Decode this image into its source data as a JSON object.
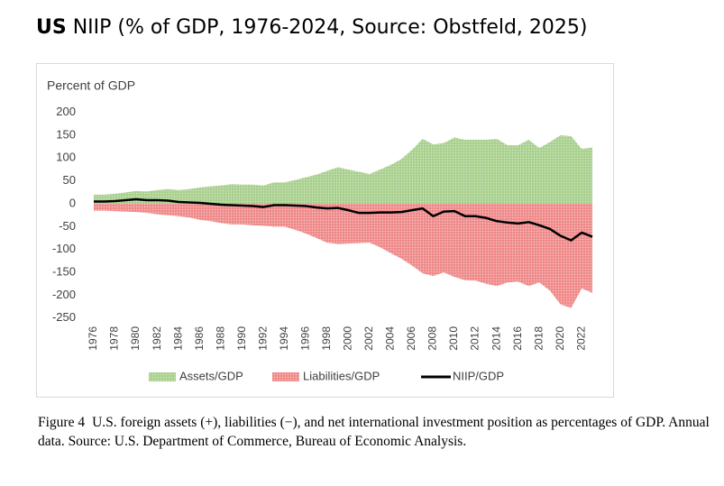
{
  "chart_data": {
    "type": "area",
    "title_prefix": "US",
    "title": "NIIP (% of GDP, 1976-2024, Source: Obstfeld, 2025)",
    "y_label": "Percent of GDP",
    "figure_label": "Figure 4",
    "caption": "U.S. foreign assets (+), liabilities (−), and net international investment position as percentages of GDP. Annual data. Source: U.S. Department of Commerce, Bureau of Economic Analysis.",
    "x": [
      1976,
      1977,
      1978,
      1979,
      1980,
      1981,
      1982,
      1983,
      1984,
      1985,
      1986,
      1987,
      1988,
      1989,
      1990,
      1991,
      1992,
      1993,
      1994,
      1995,
      1996,
      1997,
      1998,
      1999,
      2000,
      2001,
      2002,
      2003,
      2004,
      2005,
      2006,
      2007,
      2008,
      2009,
      2010,
      2011,
      2012,
      2013,
      2014,
      2015,
      2016,
      2017,
      2018,
      2019,
      2020,
      2021,
      2022,
      2023
    ],
    "xlim": [
      1976,
      2023
    ],
    "xticks": [
      1976,
      1978,
      1980,
      1982,
      1984,
      1986,
      1988,
      1990,
      1992,
      1994,
      1996,
      1998,
      2000,
      2002,
      2004,
      2006,
      2008,
      2010,
      2012,
      2014,
      2016,
      2018,
      2020,
      2022
    ],
    "ylim": [
      -250,
      200
    ],
    "yticks": [
      -250,
      -200,
      -150,
      -100,
      -50,
      0,
      50,
      100,
      150,
      200
    ],
    "grid": false,
    "legend": "bottom",
    "series": [
      {
        "name": "Assets/GDP",
        "kind": "area",
        "color": "#a9d08e",
        "values": [
          20,
          20,
          22,
          25,
          28,
          27,
          30,
          32,
          30,
          32,
          36,
          38,
          40,
          43,
          42,
          42,
          40,
          47,
          47,
          52,
          58,
          64,
          72,
          80,
          75,
          70,
          65,
          75,
          85,
          98,
          118,
          142,
          130,
          133,
          145,
          140,
          140,
          140,
          142,
          128,
          128,
          140,
          122,
          135,
          150,
          148,
          120,
          123
        ]
      },
      {
        "name": "Liabilities/GDP",
        "kind": "area",
        "color": "#f08a8a",
        "values": [
          -15,
          -15,
          -16,
          -17,
          -18,
          -20,
          -23,
          -25,
          -27,
          -30,
          -35,
          -38,
          -42,
          -45,
          -45,
          -47,
          -48,
          -50,
          -50,
          -57,
          -65,
          -75,
          -85,
          -88,
          -87,
          -86,
          -85,
          -95,
          -108,
          -120,
          -135,
          -152,
          -158,
          -150,
          -160,
          -167,
          -168,
          -175,
          -180,
          -172,
          -170,
          -180,
          -172,
          -190,
          -220,
          -228,
          -185,
          -195
        ]
      },
      {
        "name": "NIIP/GDP",
        "kind": "line",
        "color": "#000000",
        "values": [
          5,
          5,
          6,
          8,
          10,
          8,
          8,
          7,
          4,
          3,
          2,
          0,
          -2,
          -3,
          -4,
          -5,
          -7,
          -3,
          -3,
          -4,
          -5,
          -8,
          -10,
          -9,
          -14,
          -20,
          -20,
          -19,
          -19,
          -18,
          -14,
          -10,
          -27,
          -17,
          -16,
          -27,
          -27,
          -31,
          -38,
          -41,
          -43,
          -40,
          -47,
          -55,
          -70,
          -80,
          -63,
          -72
        ]
      }
    ]
  }
}
